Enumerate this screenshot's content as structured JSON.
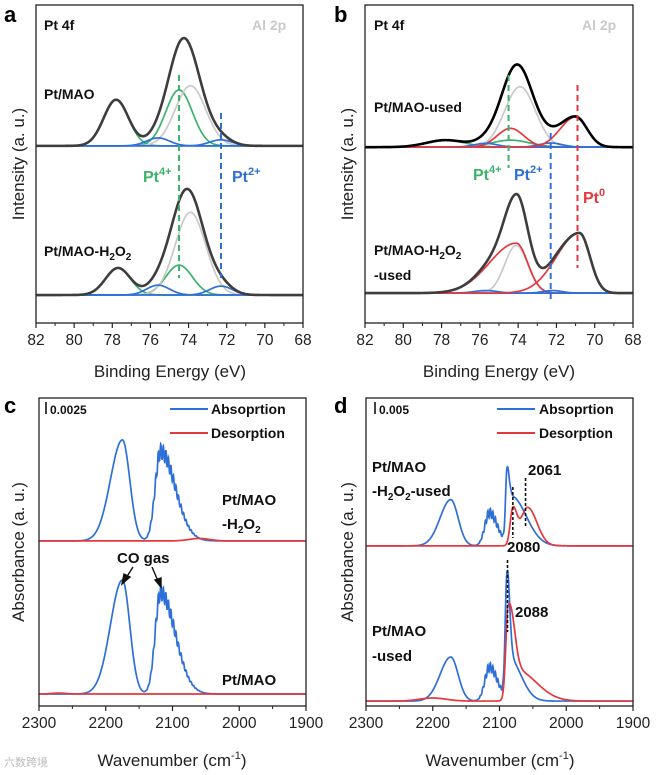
{
  "watermark": "六数跨境",
  "chart_data": [
    {
      "type": "line",
      "letter": "a",
      "title": "Pt 4f",
      "corner": "Al 2p",
      "xlabel": "Binding Energy (eV)",
      "ylabel": "Intensity (a. u.)",
      "xlim": [
        82,
        68
      ],
      "ylim": [
        0,
        100
      ],
      "xticks": [
        82,
        80,
        78,
        76,
        74,
        72,
        70,
        68
      ],
      "colors": {
        "envelope": "#3d3d3d",
        "pt4": "#3cb36a",
        "pt2": "#2f6fd8",
        "al": "#c9c9c9"
      },
      "samples": [
        {
          "label": "Pt/MAO",
          "offset": 55.7,
          "envelope": "#3d3d3d",
          "draw_components": true,
          "components": [
            {
              "name": "pt4-7/2-b",
              "color": "#3cb36a",
              "c": 77.8,
              "h": 14.5,
              "sl": 0.65,
              "sr": 0.65
            },
            {
              "name": "pt4",
              "color": "#3cb36a",
              "c": 74.5,
              "h": 17.6,
              "sl": 0.7,
              "sr": 0.7
            },
            {
              "name": "al2p",
              "color": "#c9c9c9",
              "c": 73.9,
              "h": 18.9,
              "sl": 0.8,
              "sr": 0.8
            },
            {
              "name": "pt2-b",
              "color": "#2f6fd8",
              "c": 75.6,
              "h": 2.5,
              "sl": 0.6,
              "sr": 0.6
            },
            {
              "name": "pt2",
              "color": "#2f6fd8",
              "c": 72.3,
              "h": 1.9,
              "sl": 0.6,
              "sr": 0.6
            }
          ]
        },
        {
          "label": [
            "Pt/MAO-H",
            "2",
            "O",
            "2"
          ],
          "offset": 8.8,
          "envelope": "#3d3d3d",
          "draw_components": true,
          "components": [
            {
              "name": "pt4-b",
              "color": "#3cb36a",
              "c": 77.7,
              "h": 8.5,
              "sl": 0.65,
              "sr": 0.65
            },
            {
              "name": "pt4",
              "color": "#3cb36a",
              "c": 74.5,
              "h": 9.4,
              "sl": 0.7,
              "sr": 0.7
            },
            {
              "name": "al2p",
              "color": "#c9c9c9",
              "c": 73.9,
              "h": 26,
              "sl": 0.8,
              "sr": 0.8
            },
            {
              "name": "pt2-b",
              "color": "#2f6fd8",
              "c": 75.6,
              "h": 3.1,
              "sl": 0.6,
              "sr": 0.6
            },
            {
              "name": "pt2",
              "color": "#2f6fd8",
              "c": 72.3,
              "h": 2.8,
              "sl": 0.6,
              "sr": 0.6
            }
          ]
        }
      ],
      "markers": [
        {
          "x": 74.5,
          "color": "#3cb36a",
          "label": [
            "Pt",
            "4+"
          ]
        },
        {
          "x": 72.3,
          "color": "#2f6fd8",
          "label": [
            "Pt",
            "2+"
          ]
        }
      ]
    },
    {
      "type": "line",
      "letter": "b",
      "title": "Pt 4f",
      "corner": "Al 2p",
      "xlabel": "Binding Energy (eV)",
      "ylabel": "Intensity (a. u.)",
      "xlim": [
        82,
        68
      ],
      "ylim": [
        0,
        100
      ],
      "xticks": [
        82,
        80,
        78,
        76,
        74,
        72,
        70,
        68
      ],
      "samples": [
        {
          "label": "Pt/MAO-used",
          "offset": 55.3,
          "envelope": "#000000",
          "draw_components": true,
          "components": [
            {
              "name": "pt4-b",
              "color": "#3cb36a",
              "c": 77.8,
              "h": 2.2,
              "sl": 1.0,
              "sr": 1.0
            },
            {
              "name": "pt4",
              "color": "#3cb36a",
              "c": 74.4,
              "h": 2.2,
              "sl": 1.0,
              "sr": 1.0
            },
            {
              "name": "al2p",
              "color": "#c9c9c9",
              "c": 73.9,
              "h": 19,
              "sl": 0.8,
              "sr": 0.8
            },
            {
              "name": "pt0-b",
              "color": "#e5383e",
              "c": 74.4,
              "h": 5.9,
              "sl": 0.7,
              "sr": 0.7
            },
            {
              "name": "pt2-b",
              "color": "#2f6fd8",
              "c": 75.7,
              "h": 1.2,
              "sl": 0.6,
              "sr": 0.6
            },
            {
              "name": "pt2",
              "color": "#2f6fd8",
              "c": 72.3,
              "h": 1.3,
              "sl": 0.6,
              "sr": 0.6
            },
            {
              "name": "pt0",
              "color": "#e5383e",
              "c": 71.0,
              "h": 9.5,
              "sl": 0.8,
              "sr": 0.6
            }
          ]
        },
        {
          "label": [
            "Pt/MAO-H",
            "2",
            "O",
            "2",
            "-used"
          ],
          "offset": 9.4,
          "envelope": "#3d3d3d",
          "draw_components": true,
          "components": [
            {
              "name": "al2p",
              "color": "#c9c9c9",
              "c": 74.1,
              "h": 15,
              "sl": 0.6,
              "sr": 0.6
            },
            {
              "name": "pt0-b",
              "color": "#e5383e",
              "c": 74.1,
              "h": 15.7,
              "sl": 1.4,
              "sr": 0.6
            },
            {
              "name": "pt2-b",
              "color": "#2f6fd8",
              "c": 75.7,
              "h": 0.8,
              "sl": 0.6,
              "sr": 0.6
            },
            {
              "name": "pt2",
              "color": "#2f6fd8",
              "c": 72.2,
              "h": 0.8,
              "sl": 0.5,
              "sr": 0.5
            },
            {
              "name": "pt0",
              "color": "#e5383e",
              "c": 70.8,
              "h": 18.9,
              "sl": 1.2,
              "sr": 0.55
            }
          ]
        }
      ],
      "markers": [
        {
          "x": 74.5,
          "color": "#3cb36a",
          "label": [
            "Pt",
            "4+"
          ]
        },
        {
          "x": 72.3,
          "color": "#2f6fd8",
          "label": [
            "Pt",
            "2+"
          ]
        },
        {
          "x": 70.9,
          "color": "#e5383e",
          "label": [
            "Pt",
            "0"
          ]
        }
      ]
    },
    {
      "type": "line",
      "letter": "c",
      "scale_bar": "0.0025",
      "xlabel": "Wavenumber (cm",
      "xlabel_sup": "-1",
      "xlabel_end": ")",
      "ylabel": "Absorbance (a. u.)",
      "xlim": [
        2300,
        1900
      ],
      "ylim": [
        0,
        100
      ],
      "xticks": [
        2300,
        2200,
        2100,
        2000,
        1900
      ],
      "legend": [
        {
          "name": "Absoprtion",
          "color": "#2f6fd8"
        },
        {
          "name": "Desorption",
          "color": "#e5383e"
        }
      ],
      "sample_labels": [
        [
          "Pt/MAO",
          "-H",
          "2",
          "O",
          "2"
        ],
        [
          "Pt/MAO"
        ]
      ],
      "annotation": "CO gas",
      "samples": [
        {
          "offset": 53.6,
          "envelope": "#2f6fd8",
          "series": "Absoprtion",
          "components": [
            {
              "c": 2175,
              "h": 32.8,
              "sl": 18,
              "sr": 11
            },
            {
              "c": 2118,
              "h": 29,
              "sl": 8,
              "sr": 22,
              "ripple": 2.5
            }
          ]
        },
        {
          "offset": 53.6,
          "envelope": "#e5383e",
          "series": "Desorption",
          "components": [
            {
              "c": 2060,
              "h": 0.8,
              "sl": 15,
              "sr": 15
            }
          ]
        },
        {
          "offset": 3.9,
          "envelope": "#2f6fd8",
          "series": "Absoprtion",
          "components": [
            {
              "c": 2175,
              "h": 37,
              "sl": 18,
              "sr": 11
            },
            {
              "c": 2118,
              "h": 32.8,
              "sl": 8,
              "sr": 22,
              "ripple": 2.5
            }
          ]
        },
        {
          "offset": 3.9,
          "envelope": "#e5383e",
          "series": "Desorption",
          "components": [
            {
              "c": 2270,
              "h": 0.3,
              "sl": 10,
              "sr": 10
            }
          ]
        }
      ]
    },
    {
      "type": "line",
      "letter": "d",
      "scale_bar": "0.005",
      "xlabel": "Wavenumber (cm",
      "xlabel_sup": "-1",
      "xlabel_end": ")",
      "ylabel": "Absorbance (a. u.)",
      "xlim": [
        2300,
        1900
      ],
      "ylim": [
        0,
        100
      ],
      "xticks": [
        2300,
        2200,
        2100,
        2000,
        1900
      ],
      "legend": [
        {
          "name": "Absoprtion",
          "color": "#2f6fd8"
        },
        {
          "name": "Desorption",
          "color": "#e5383e"
        }
      ],
      "sample_labels": [
        [
          "Pt/MAO",
          "-H",
          "2",
          "O",
          "2",
          "-used"
        ],
        [
          "Pt/MAO",
          "-used"
        ]
      ],
      "peak_labels": [
        "2061",
        "2080",
        "2088"
      ],
      "peak_positions": [
        2061,
        2080,
        2088
      ],
      "samples": [
        {
          "offset": 52,
          "envelope": "#2f6fd8",
          "series": "Absoprtion",
          "components": [
            {
              "c": 2173,
              "h": 15,
              "sl": 16,
              "sr": 11
            },
            {
              "c": 2115,
              "h": 10.7,
              "sl": 7,
              "sr": 12,
              "ripple": 1.5
            },
            {
              "c": 2089,
              "h": 18,
              "sl": 2,
              "sr": 3
            },
            {
              "c": 2082,
              "h": 16,
              "sl": 5,
              "sr": 22
            }
          ]
        },
        {
          "offset": 52,
          "envelope": "#e5383e",
          "series": "Desorption",
          "components": [
            {
              "c": 2080,
              "h": 11.5,
              "sl": 4,
              "sr": 6
            },
            {
              "c": 2058,
              "h": 12.5,
              "sl": 10,
              "sr": 14
            }
          ]
        },
        {
          "offset": 1.6,
          "envelope": "#2f6fd8",
          "series": "Absoprtion",
          "components": [
            {
              "c": 2173,
              "h": 14.3,
              "sl": 16,
              "sr": 11
            },
            {
              "c": 2115,
              "h": 11,
              "sl": 7,
              "sr": 12,
              "ripple": 1.5
            },
            {
              "c": 2089,
              "h": 30,
              "sl": 2.5,
              "sr": 4
            },
            {
              "c": 2086,
              "h": 14,
              "sl": 4,
              "sr": 18
            }
          ]
        },
        {
          "offset": 1.6,
          "envelope": "#e5383e",
          "series": "Desorption",
          "components": [
            {
              "c": 2087,
              "h": 28,
              "sl": 3.5,
              "sr": 8
            },
            {
              "c": 2075,
              "h": 10,
              "sl": 8,
              "sr": 30
            },
            {
              "c": 2200,
              "h": 1,
              "sl": 20,
              "sr": 20
            }
          ]
        }
      ]
    }
  ]
}
